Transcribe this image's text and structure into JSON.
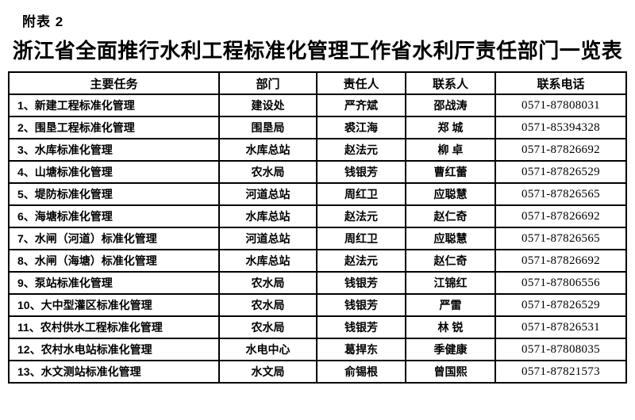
{
  "page": {
    "note": "附表 2",
    "title": "浙江省全面推行水利工程标准化管理工作省水利厅责任部门一览表"
  },
  "table": {
    "headers": {
      "task": "主要任务",
      "dept": "部门",
      "person": "责任人",
      "contact": "联系人",
      "phone": "联系电话"
    },
    "rows": [
      {
        "task": "1、新建工程标准化管理",
        "dept": "建设处",
        "person": "严齐斌",
        "contact": "邵战涛",
        "phone": "0571-87808031"
      },
      {
        "task": "2、围垦工程标准化管理",
        "dept": "围垦局",
        "person": "裘江海",
        "contact": "郑 城",
        "phone": "0571-85394328"
      },
      {
        "task": "3、水库标准化管理",
        "dept": "水库总站",
        "person": "赵法元",
        "contact": "柳 卓",
        "phone": "0571-87826692"
      },
      {
        "task": "4、山塘标准化管理",
        "dept": "农水局",
        "person": "钱银芳",
        "contact": "曹红蕾",
        "phone": "0571-87826529"
      },
      {
        "task": "5、堤防标准化管理",
        "dept": "河道总站",
        "person": "周红卫",
        "contact": "应聪慧",
        "phone": "0571-87826565"
      },
      {
        "task": "6、海塘标准化管理",
        "dept": "水库总站",
        "person": "赵法元",
        "contact": "赵仁奇",
        "phone": "0571-87826692"
      },
      {
        "task": "7、水闸（河道）标准化管理",
        "dept": "河道总站",
        "person": "周红卫",
        "contact": "应聪慧",
        "phone": "0571-87826565"
      },
      {
        "task": "8、水闸（海塘）标准化管理",
        "dept": "水库总站",
        "person": "赵法元",
        "contact": "赵仁奇",
        "phone": "0571-87826692"
      },
      {
        "task": "9、泵站标准化管理",
        "dept": "农水局",
        "person": "钱银芳",
        "contact": "江锦红",
        "phone": "0571-87806556"
      },
      {
        "task": "10、大中型灌区标准化管理",
        "dept": "农水局",
        "person": "钱银芳",
        "contact": "严雷",
        "phone": "0571-87826529"
      },
      {
        "task": "11、农村供水工程标准化管理",
        "dept": "农水局",
        "person": "钱银芳",
        "contact": "林 锐",
        "phone": "0571-87826531"
      },
      {
        "task": "12、农村水电站标准化管理",
        "dept": "水电中心",
        "person": "葛捍东",
        "contact": "季健康",
        "phone": "0571-87808035"
      },
      {
        "task": "13、水文测站标准化管理",
        "dept": "水文局",
        "person": "俞锡根",
        "contact": "曾国熙",
        "phone": "0571-87821573"
      }
    ]
  }
}
